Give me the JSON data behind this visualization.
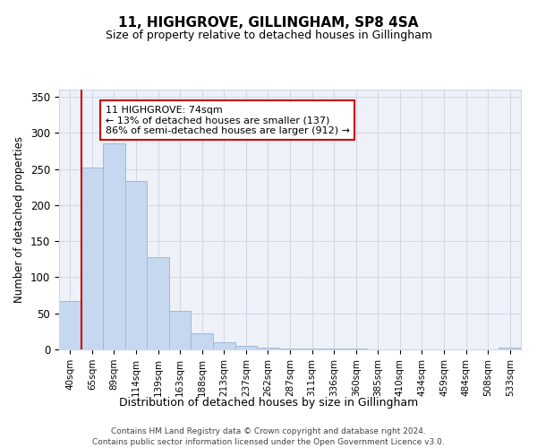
{
  "title": "11, HIGHGROVE, GILLINGHAM, SP8 4SA",
  "subtitle": "Size of property relative to detached houses in Gillingham",
  "xlabel": "Distribution of detached houses by size in Gillingham",
  "ylabel": "Number of detached properties",
  "categories": [
    "40sqm",
    "65sqm",
    "89sqm",
    "114sqm",
    "139sqm",
    "163sqm",
    "188sqm",
    "213sqm",
    "237sqm",
    "262sqm",
    "287sqm",
    "311sqm",
    "336sqm",
    "360sqm",
    "385sqm",
    "410sqm",
    "434sqm",
    "459sqm",
    "484sqm",
    "508sqm",
    "533sqm"
  ],
  "values": [
    67,
    252,
    286,
    234,
    128,
    53,
    22,
    10,
    5,
    2,
    1,
    1,
    1,
    1,
    0,
    0,
    0,
    0,
    0,
    0,
    3
  ],
  "bar_color": "#c5d8f0",
  "bar_edge_color": "#a0b8d8",
  "vline_x_index": 1,
  "vline_color": "#cc0000",
  "annotation_text": "11 HIGHGROVE: 74sqm\n← 13% of detached houses are smaller (137)\n86% of semi-detached houses are larger (912) →",
  "annotation_box_color": "#ffffff",
  "annotation_box_edge": "#cc0000",
  "ylim": [
    0,
    360
  ],
  "yticks": [
    0,
    50,
    100,
    150,
    200,
    250,
    300,
    350
  ],
  "grid_color": "#d0d8e8",
  "background_color": "#eef2f8",
  "footer_line1": "Contains HM Land Registry data © Crown copyright and database right 2024.",
  "footer_line2": "Contains public sector information licensed under the Open Government Licence v3.0."
}
